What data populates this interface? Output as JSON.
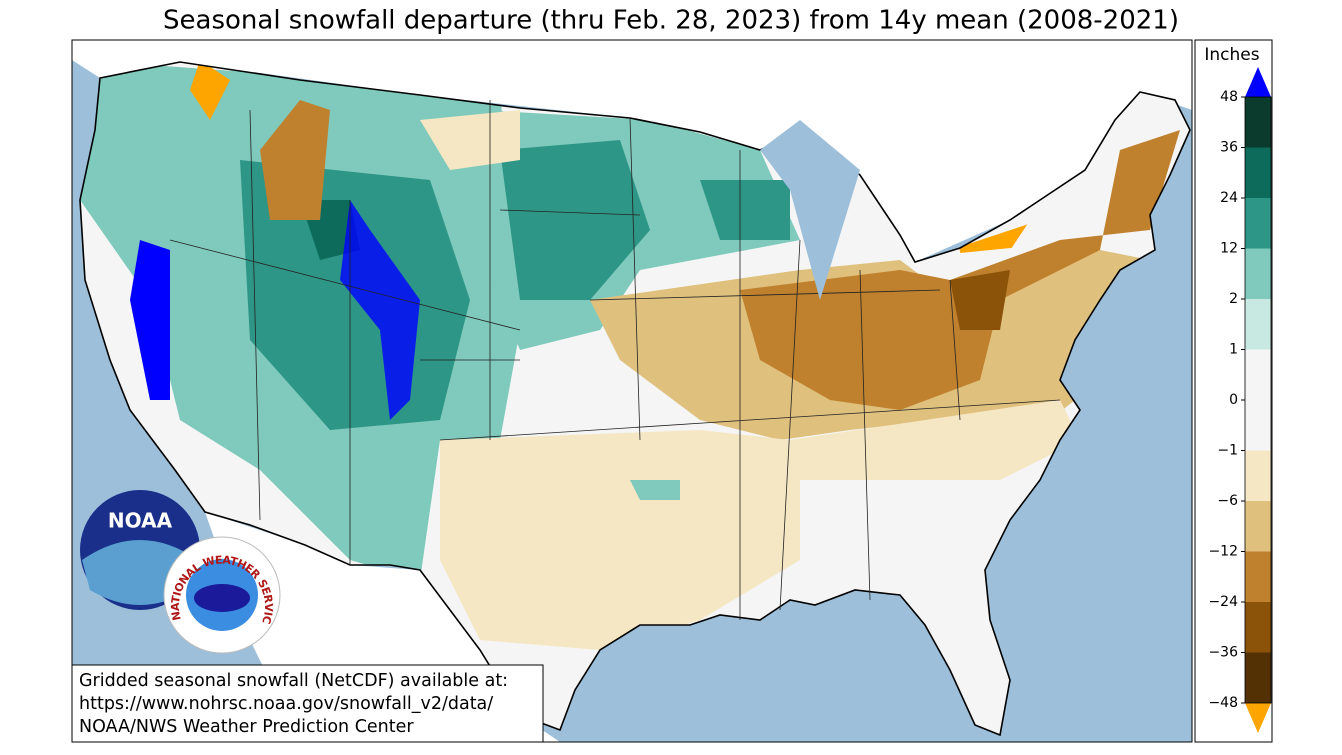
{
  "title": "Seasonal snowfall departure (thru Feb. 28, 2023) from 14y mean (2008-2021)",
  "legend": {
    "title": "Inches",
    "ticks": [
      48,
      36,
      24,
      12,
      2,
      1,
      0,
      {
        "value": -1,
        "label": "−1"
      },
      {
        "value": -6,
        "label": "−6"
      },
      {
        "value": -12,
        "label": "−12"
      },
      {
        "value": -24,
        "label": "−24"
      },
      {
        "value": -36,
        "label": "−36"
      },
      {
        "value": -48,
        "label": "−48"
      }
    ],
    "colors": [
      "#0a3b2c",
      "#0d6b5c",
      "#2e9687",
      "#7fcabc",
      "#c7e9e1",
      "#f5f5f5",
      "#f5f5f5",
      "#f6e7c4",
      "#dfc07d",
      "#bf812d",
      "#8b520a",
      "#543005"
    ],
    "over_color": "#0000ff",
    "under_color": "#ffa500"
  },
  "note": [
    "Gridded seasonal snowfall (NetCDF) available at:",
    "https://www.nohrsc.noaa.gov/snowfall_v2/data/",
    "NOAA/NWS Weather Prediction Center"
  ],
  "logos": {
    "noaa": "NOAA",
    "nws": "NATIONAL WEATHER SERVICE"
  }
}
